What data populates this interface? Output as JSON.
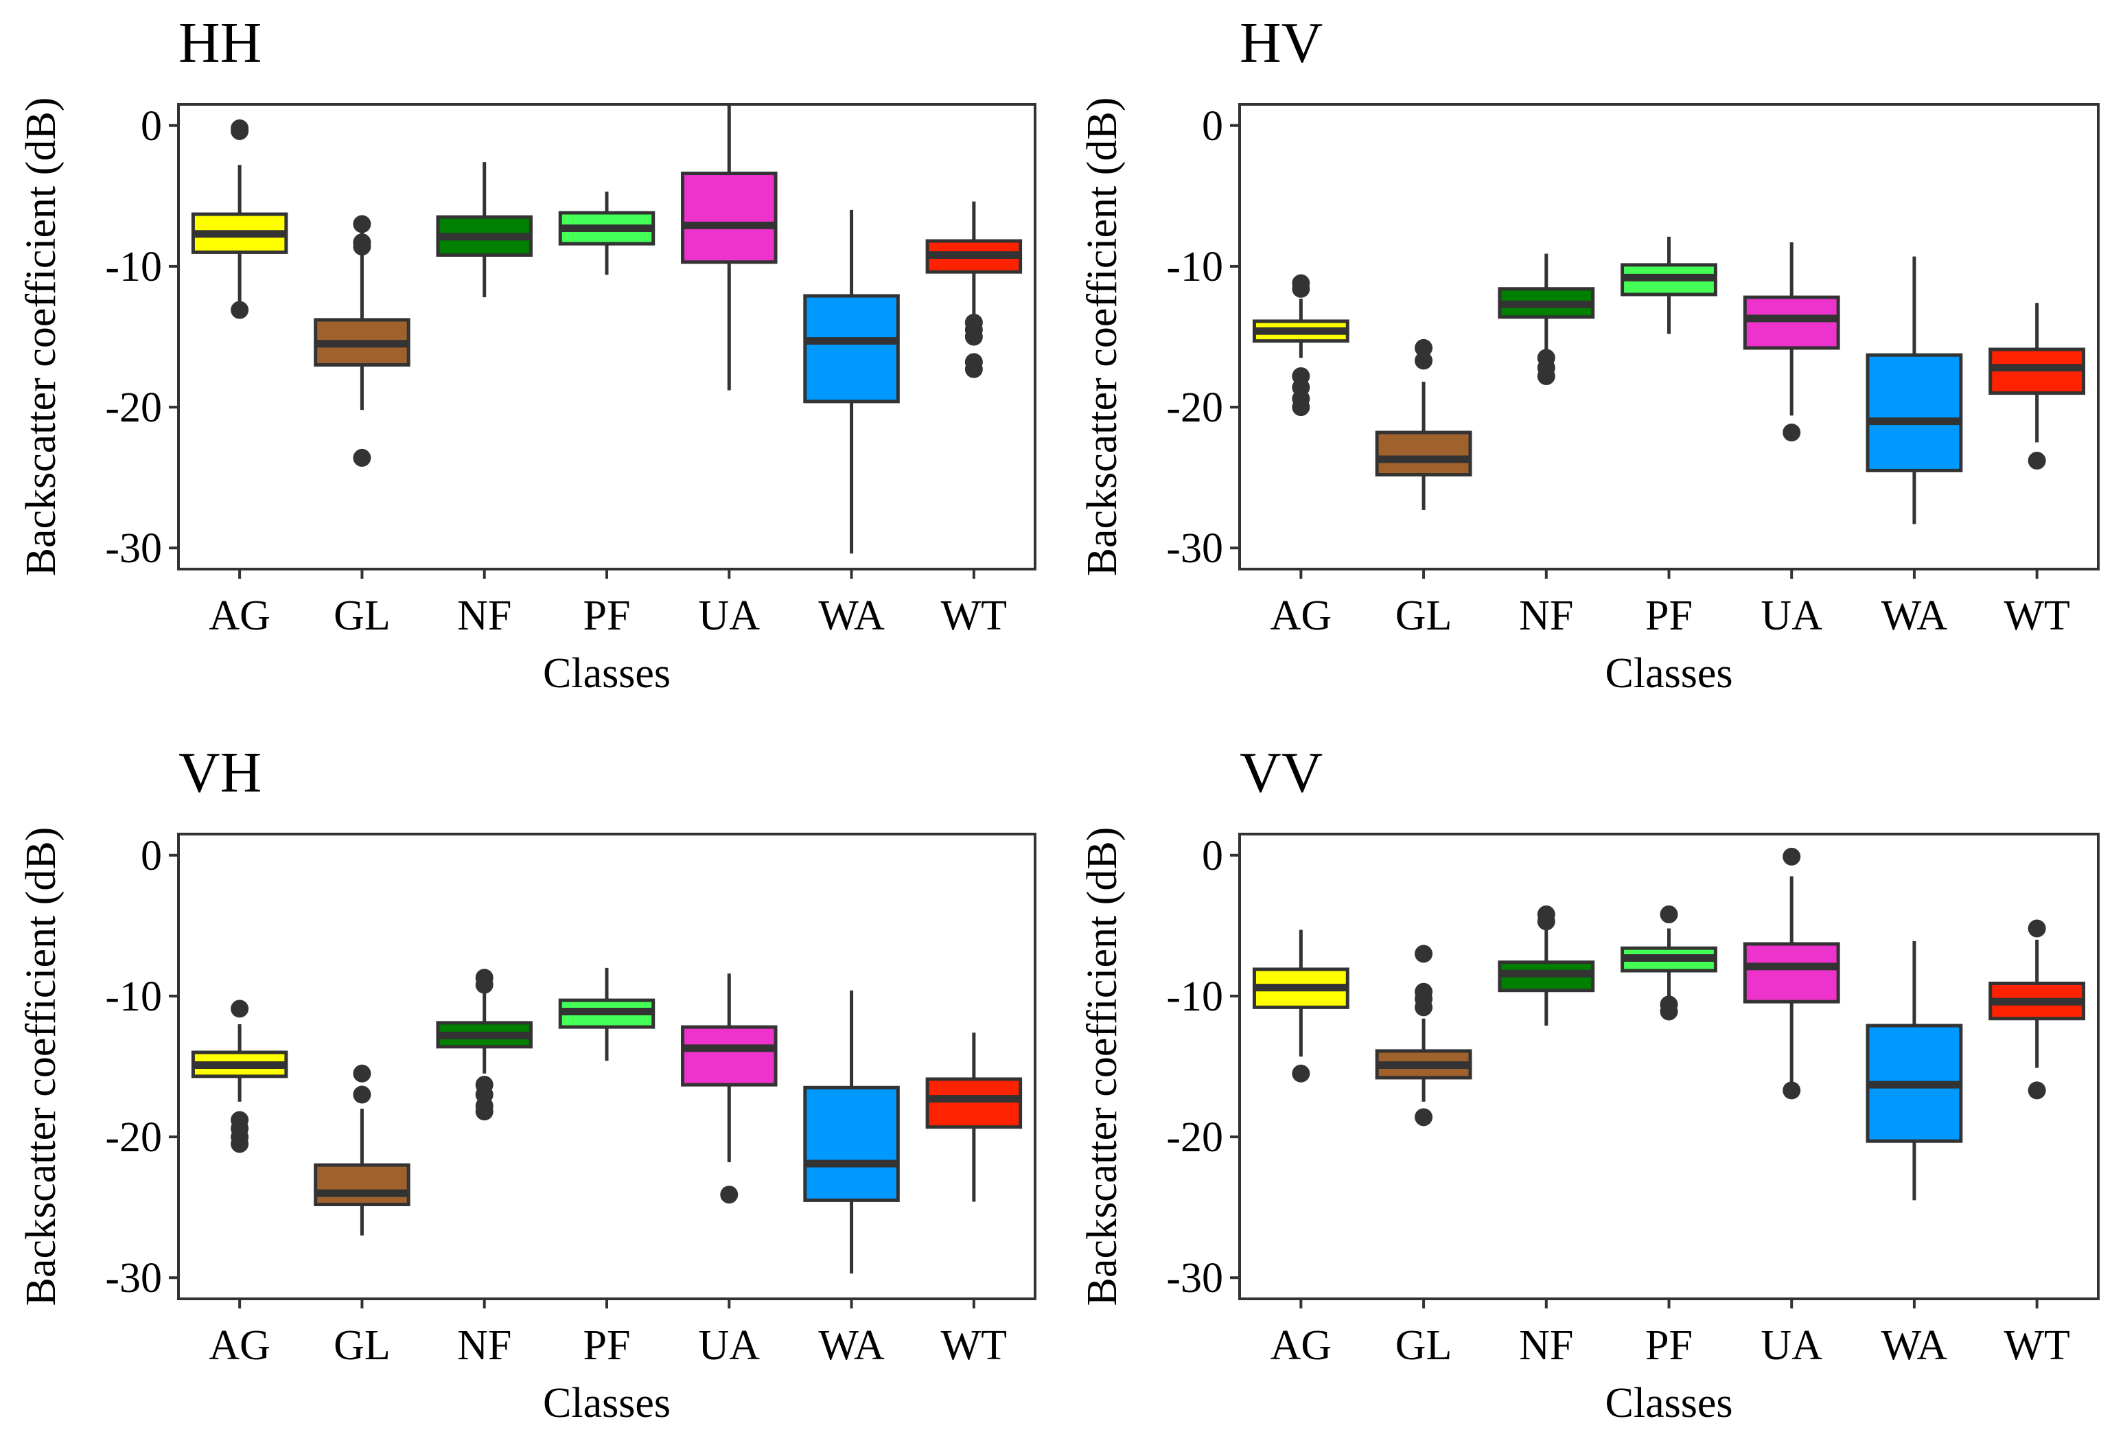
{
  "colors": {
    "AG": "#FFFF00",
    "GL": "#A0622D",
    "NF": "#008000",
    "PF": "#44FF55",
    "UA": "#EE33CC",
    "WA": "#0099FF",
    "WT": "#FF2200",
    "box_outline": "#333333",
    "panel_border": "#333333"
  },
  "chart_data": [
    {
      "type": "box",
      "title": "HH",
      "xlabel": "Classes",
      "ylabel": "Backscatter coefficient (dB)",
      "ylim": [
        -31.5,
        1.5
      ],
      "yticks": [
        0,
        -10,
        -20,
        -30
      ],
      "categories": [
        "AG",
        "GL",
        "NF",
        "PF",
        "UA",
        "WA",
        "WT"
      ],
      "boxes": [
        {
          "category": "AG",
          "q1": -9,
          "median": -7.7,
          "q3": -6.3,
          "whisker_low": -12.5,
          "whisker_high": -2.8,
          "outliers": [
            -0.2,
            -0.4,
            -13.1
          ]
        },
        {
          "category": "GL",
          "q1": -17,
          "median": -15.5,
          "q3": -13.8,
          "whisker_low": -20.2,
          "whisker_high": -7.5,
          "outliers": [
            -7,
            -8.3,
            -8.6,
            -23.6
          ]
        },
        {
          "category": "NF",
          "q1": -9.2,
          "median": -7.9,
          "q3": -6.5,
          "whisker_low": -12.2,
          "whisker_high": -2.6,
          "outliers": []
        },
        {
          "category": "PF",
          "q1": -8.4,
          "median": -7.3,
          "q3": -6.2,
          "whisker_low": -10.6,
          "whisker_high": -4.7,
          "outliers": []
        },
        {
          "category": "UA",
          "q1": -9.7,
          "median": -7.1,
          "q3": -3.4,
          "whisker_low": -18.8,
          "whisker_high": 1.5,
          "outliers": []
        },
        {
          "category": "WA",
          "q1": -19.6,
          "median": -15.3,
          "q3": -12.1,
          "whisker_low": -30.4,
          "whisker_high": -6.0,
          "outliers": []
        },
        {
          "category": "WT",
          "q1": -10.4,
          "median": -9.2,
          "q3": -8.2,
          "whisker_low": -13.7,
          "whisker_high": -5.4,
          "outliers": [
            -14,
            -14.5,
            -15,
            -16.8,
            -17.3
          ]
        }
      ]
    },
    {
      "type": "box",
      "title": "HV",
      "xlabel": "Classes",
      "ylabel": "Backscatter coefficient (dB)",
      "ylim": [
        -31.5,
        1.5
      ],
      "yticks": [
        0,
        -10,
        -20,
        -30
      ],
      "categories": [
        "AG",
        "GL",
        "NF",
        "PF",
        "UA",
        "WA",
        "WT"
      ],
      "boxes": [
        {
          "category": "AG",
          "q1": -15.3,
          "median": -14.6,
          "q3": -13.9,
          "whisker_low": -16.5,
          "whisker_high": -12.3,
          "outliers": [
            -11.2,
            -11.6,
            -17.8,
            -18.6,
            -19.4,
            -20
          ]
        },
        {
          "category": "GL",
          "q1": -24.8,
          "median": -23.7,
          "q3": -21.8,
          "whisker_low": -27.3,
          "whisker_high": -18.2,
          "outliers": [
            -15.8,
            -16.7
          ]
        },
        {
          "category": "NF",
          "q1": -13.6,
          "median": -12.7,
          "q3": -11.6,
          "whisker_low": -16.2,
          "whisker_high": -9.1,
          "outliers": [
            -16.5,
            -17.2,
            -17.8
          ]
        },
        {
          "category": "PF",
          "q1": -12,
          "median": -10.8,
          "q3": -9.9,
          "whisker_low": -14.8,
          "whisker_high": -7.9,
          "outliers": []
        },
        {
          "category": "UA",
          "q1": -15.8,
          "median": -13.7,
          "q3": -12.2,
          "whisker_low": -20.6,
          "whisker_high": -8.3,
          "outliers": [
            -21.8
          ]
        },
        {
          "category": "WA",
          "q1": -24.5,
          "median": -21,
          "q3": -16.3,
          "whisker_low": -28.3,
          "whisker_high": -9.3,
          "outliers": []
        },
        {
          "category": "WT",
          "q1": -19,
          "median": -17.2,
          "q3": -15.9,
          "whisker_low": -22.5,
          "whisker_high": -12.6,
          "outliers": [
            -23.8
          ]
        }
      ]
    },
    {
      "type": "box",
      "title": "VH",
      "xlabel": "Classes",
      "ylabel": "Backscatter coefficient (dB)",
      "ylim": [
        -31.5,
        1.5
      ],
      "yticks": [
        0,
        -10,
        -20,
        -30
      ],
      "categories": [
        "AG",
        "GL",
        "NF",
        "PF",
        "UA",
        "WA",
        "WT"
      ],
      "boxes": [
        {
          "category": "AG",
          "q1": -15.7,
          "median": -14.9,
          "q3": -14,
          "whisker_low": -17.5,
          "whisker_high": -12,
          "outliers": [
            -10.9,
            -18.8,
            -19.4,
            -20,
            -20.5
          ]
        },
        {
          "category": "GL",
          "q1": -24.8,
          "median": -24,
          "q3": -22,
          "whisker_low": -27,
          "whisker_high": -18,
          "outliers": [
            -15.5,
            -17
          ]
        },
        {
          "category": "NF",
          "q1": -13.6,
          "median": -12.8,
          "q3": -11.9,
          "whisker_low": -15.5,
          "whisker_high": -9.3,
          "outliers": [
            -8.7,
            -9.2,
            -16.3,
            -17,
            -17.8,
            -18.2
          ]
        },
        {
          "category": "PF",
          "q1": -12.2,
          "median": -11.1,
          "q3": -10.3,
          "whisker_low": -14.6,
          "whisker_high": -8.0,
          "outliers": []
        },
        {
          "category": "UA",
          "q1": -16.3,
          "median": -13.7,
          "q3": -12.2,
          "whisker_low": -21.8,
          "whisker_high": -8.4,
          "outliers": [
            -24.1
          ]
        },
        {
          "category": "WA",
          "q1": -24.5,
          "median": -21.9,
          "q3": -16.5,
          "whisker_low": -29.7,
          "whisker_high": -9.6,
          "outliers": []
        },
        {
          "category": "WT",
          "q1": -19.3,
          "median": -17.3,
          "q3": -15.9,
          "whisker_low": -24.6,
          "whisker_high": -12.6,
          "outliers": []
        }
      ]
    },
    {
      "type": "box",
      "title": "VV",
      "xlabel": "Classes",
      "ylabel": "Backscatter coefficient (dB)",
      "ylim": [
        -31.5,
        1.5
      ],
      "yticks": [
        0,
        -10,
        -20,
        -30
      ],
      "categories": [
        "AG",
        "GL",
        "NF",
        "PF",
        "UA",
        "WA",
        "WT"
      ],
      "boxes": [
        {
          "category": "AG",
          "q1": -10.8,
          "median": -9.4,
          "q3": -8.1,
          "whisker_low": -14.3,
          "whisker_high": -5.3,
          "outliers": [
            -15.5
          ]
        },
        {
          "category": "GL",
          "q1": -15.8,
          "median": -14.9,
          "q3": -13.9,
          "whisker_low": -17.5,
          "whisker_high": -11.6,
          "outliers": [
            -7,
            -9.7,
            -10.2,
            -10.8,
            -18.6
          ]
        },
        {
          "category": "NF",
          "q1": -9.6,
          "median": -8.4,
          "q3": -7.6,
          "whisker_low": -12.1,
          "whisker_high": -5.0,
          "outliers": [
            -4.2,
            -4.7
          ]
        },
        {
          "category": "PF",
          "q1": -8.2,
          "median": -7.3,
          "q3": -6.6,
          "whisker_low": -10.2,
          "whisker_high": -5.2,
          "outliers": [
            -4.2,
            -10.6,
            -11.1
          ]
        },
        {
          "category": "UA",
          "q1": -10.4,
          "median": -7.9,
          "q3": -6.3,
          "whisker_low": -16.4,
          "whisker_high": -1.5,
          "outliers": [
            -0.1,
            -16.7
          ]
        },
        {
          "category": "WA",
          "q1": -20.3,
          "median": -16.3,
          "q3": -12.1,
          "whisker_low": -24.5,
          "whisker_high": -6.1,
          "outliers": []
        },
        {
          "category": "WT",
          "q1": -11.6,
          "median": -10.4,
          "q3": -9.1,
          "whisker_low": -15.1,
          "whisker_high": -6.0,
          "outliers": [
            -5.2,
            -16.7
          ]
        }
      ]
    }
  ]
}
